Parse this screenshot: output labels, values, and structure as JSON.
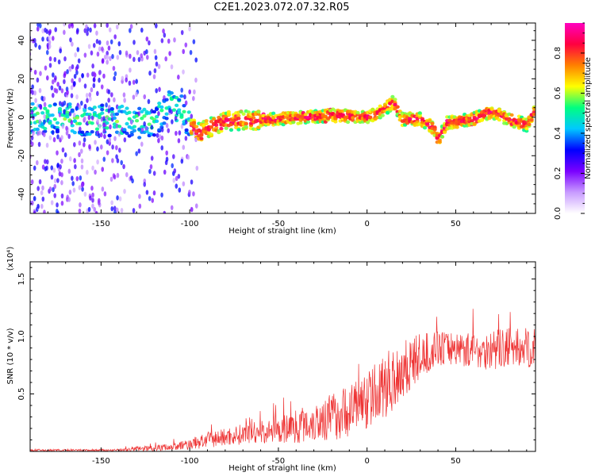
{
  "title": "C2E1.2023.072.07.32.R05",
  "chart_data": [
    {
      "type": "heatmap",
      "title": "C2E1.2023.072.07.32.R05",
      "xlabel": "Height of straight line (km)",
      "ylabel": "Frequency (Hz)",
      "xlim": [
        -190,
        95
      ],
      "ylim": [
        -50,
        49
      ],
      "xticks": [
        -150,
        -100,
        -50,
        0,
        50
      ],
      "yticks": [
        -40,
        -20,
        0,
        20,
        40
      ],
      "ridge": {
        "x": [
          -190,
          -140,
          -120,
          -110,
          -105,
          -100,
          -95,
          -80,
          -50,
          -20,
          0,
          10,
          15,
          20,
          30,
          38,
          40,
          45,
          60,
          70,
          80,
          90,
          95
        ],
        "y": [
          0,
          -2,
          -3,
          8,
          4,
          -4,
          -8,
          -2,
          -1,
          1,
          0,
          4,
          8,
          -1,
          -1,
          -6,
          -12,
          -3,
          -1,
          3,
          -1,
          -4,
          4
        ]
      },
      "colorbar": {
        "label": "Normalized spectral amplitude",
        "ticks": [
          "0.0",
          "0.2",
          "0.4",
          "0.6",
          "0.8"
        ],
        "range": [
          0,
          0.95
        ],
        "colors": [
          "#ffffff",
          "#c89bff",
          "#7a00ff",
          "#0000ff",
          "#00c8ff",
          "#00ff80",
          "#ffff00",
          "#ff8000",
          "#ff0040",
          "#ff00c0"
        ]
      }
    },
    {
      "type": "line",
      "xlabel": "Height of straight line (km)",
      "ylabel": "SNR (10 * v/v)",
      "scale_label": "(x10⁴)",
      "xlim": [
        -190,
        95
      ],
      "ylim": [
        0,
        1.65
      ],
      "xticks": [
        -150,
        -100,
        -50,
        0,
        50
      ],
      "yticks": [
        "0.5",
        "1.0",
        "1.5"
      ],
      "color": "#ee3333",
      "envelope": {
        "x": [
          -190,
          -140,
          -130,
          -110,
          -100,
          -90,
          -70,
          -50,
          -40,
          -30,
          -20,
          -10,
          0,
          10,
          20,
          30,
          40,
          50,
          60,
          70,
          80,
          95
        ],
        "base": [
          0.01,
          0.01,
          0.02,
          0.04,
          0.06,
          0.1,
          0.15,
          0.18,
          0.22,
          0.26,
          0.3,
          0.36,
          0.45,
          0.56,
          0.72,
          0.82,
          0.9,
          0.9,
          0.88,
          0.88,
          0.9,
          0.9
        ],
        "spread": [
          0.02,
          0.02,
          0.05,
          0.06,
          0.1,
          0.14,
          0.18,
          0.22,
          0.3,
          0.36,
          0.42,
          0.46,
          0.5,
          0.56,
          0.6,
          0.4,
          0.3,
          0.3,
          0.3,
          0.35,
          0.35,
          0.35
        ]
      }
    }
  ]
}
